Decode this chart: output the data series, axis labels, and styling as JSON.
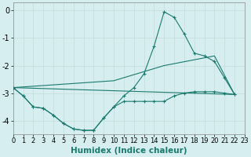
{
  "xlabel": "Humidex (Indice chaleur)",
  "background_color": "#d6eef0",
  "line_color": "#1a7a6e",
  "grid_color": "#c8dfe0",
  "xlim": [
    0,
    23
  ],
  "ylim": [
    -4.5,
    0.3
  ],
  "yticks": [
    0,
    -1,
    -2,
    -3,
    -4
  ],
  "xticks": [
    0,
    1,
    2,
    3,
    4,
    5,
    6,
    7,
    8,
    9,
    10,
    11,
    12,
    13,
    14,
    15,
    16,
    17,
    18,
    19,
    20,
    21,
    22,
    23
  ],
  "series": [
    {
      "points": [
        [
          0,
          -2.8
        ],
        [
          1,
          -3.1
        ],
        [
          2,
          -3.5
        ],
        [
          3,
          -3.55
        ],
        [
          4,
          -3.8
        ],
        [
          5,
          -4.1
        ],
        [
          6,
          -4.3
        ],
        [
          7,
          -4.35
        ],
        [
          8,
          -4.35
        ],
        [
          9,
          -3.9
        ],
        [
          10,
          -3.5
        ],
        [
          11,
          -3.1
        ],
        [
          12,
          -2.8
        ],
        [
          13,
          -2.3
        ],
        [
          14,
          -1.3
        ],
        [
          15,
          -0.05
        ],
        [
          16,
          -0.25
        ],
        [
          17,
          -0.85
        ],
        [
          18,
          -1.55
        ],
        [
          19,
          -1.65
        ],
        [
          20,
          -1.85
        ],
        [
          21,
          -2.45
        ],
        [
          22,
          -3.05
        ]
      ],
      "marker": true
    },
    {
      "points": [
        [
          0,
          -2.8
        ],
        [
          1,
          -3.1
        ],
        [
          2,
          -3.5
        ],
        [
          3,
          -3.55
        ],
        [
          4,
          -3.8
        ],
        [
          5,
          -4.1
        ],
        [
          6,
          -4.3
        ],
        [
          7,
          -4.35
        ],
        [
          8,
          -4.35
        ],
        [
          9,
          -3.9
        ],
        [
          10,
          -3.5
        ],
        [
          11,
          -3.3
        ],
        [
          12,
          -3.3
        ],
        [
          13,
          -3.3
        ],
        [
          14,
          -3.3
        ],
        [
          15,
          -3.3
        ],
        [
          16,
          -3.1
        ],
        [
          17,
          -3.0
        ],
        [
          18,
          -2.95
        ],
        [
          19,
          -2.95
        ],
        [
          20,
          -2.95
        ],
        [
          21,
          -3.0
        ],
        [
          22,
          -3.05
        ]
      ],
      "marker": true
    },
    {
      "points": [
        [
          0,
          -2.8
        ],
        [
          22,
          -3.05
        ]
      ],
      "marker": false
    },
    {
      "points": [
        [
          0,
          -2.8
        ],
        [
          10,
          -2.55
        ],
        [
          15,
          -2.0
        ],
        [
          20,
          -1.65
        ],
        [
          22,
          -3.05
        ]
      ],
      "marker": false
    }
  ]
}
